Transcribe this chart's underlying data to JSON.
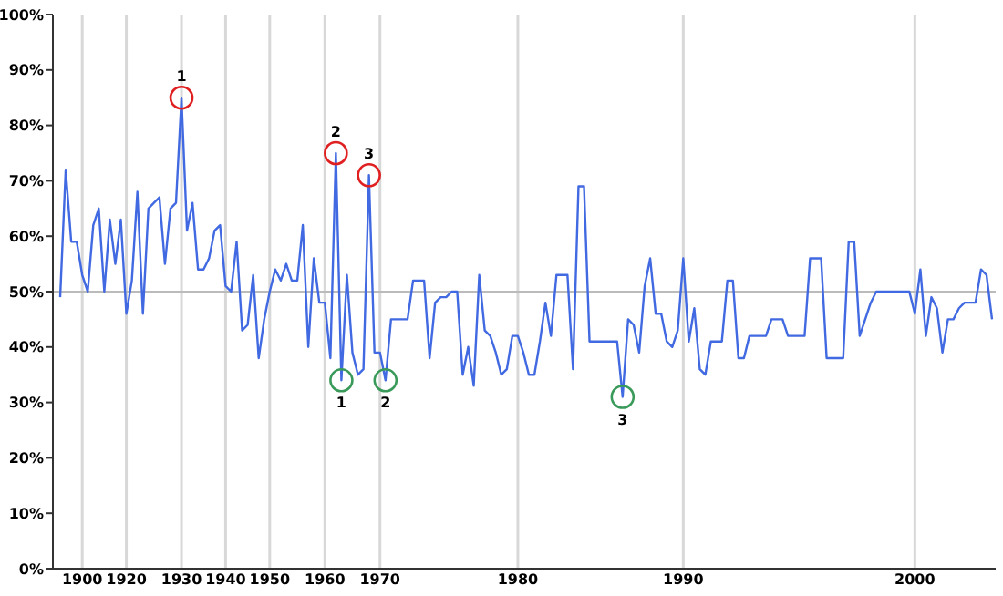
{
  "chart_data": {
    "type": "line",
    "categories": [
      null,
      null,
      null,
      null,
      "1900",
      null,
      null,
      null,
      null,
      null,
      null,
      null,
      "1920",
      null,
      null,
      null,
      null,
      null,
      null,
      null,
      null,
      null,
      "1930",
      null,
      null,
      null,
      null,
      null,
      null,
      null,
      "1940",
      null,
      null,
      null,
      null,
      null,
      null,
      null,
      "1950",
      null,
      null,
      null,
      null,
      null,
      null,
      null,
      null,
      null,
      "1960",
      null,
      null,
      null,
      null,
      null,
      null,
      null,
      null,
      null,
      "1970",
      null,
      null,
      null,
      null,
      null,
      null,
      null,
      null,
      null,
      null,
      null,
      null,
      null,
      null,
      null,
      null,
      null,
      null,
      null,
      null,
      null,
      null,
      null,
      null,
      "1980",
      null,
      null,
      null,
      null,
      null,
      null,
      null,
      null,
      null,
      null,
      null,
      null,
      null,
      null,
      null,
      null,
      null,
      null,
      null,
      null,
      null,
      null,
      null,
      null,
      null,
      null,
      null,
      null,
      null,
      "1990",
      null,
      null,
      null,
      null,
      null,
      null,
      null,
      null,
      null,
      null,
      null,
      null,
      null,
      null,
      null,
      null,
      null,
      null,
      null,
      null,
      null,
      null,
      null,
      null,
      null,
      null,
      null,
      null,
      null,
      null,
      null,
      null,
      null,
      null,
      null,
      null,
      null,
      null,
      null,
      null,
      null,
      "2000",
      null,
      null,
      null,
      null,
      null,
      null,
      null,
      null,
      null,
      null,
      null,
      null,
      null,
      null
    ],
    "series": [
      {
        "color": "#4169e1",
        "values": [
          49,
          72,
          59,
          59,
          53,
          50,
          62,
          65,
          50,
          63,
          55,
          63,
          46,
          52,
          68,
          46,
          65,
          66,
          67,
          55,
          65,
          66,
          85,
          61,
          66,
          54,
          54,
          56,
          61,
          62,
          51,
          50,
          59,
          43,
          44,
          53,
          38,
          45,
          50,
          54,
          52,
          55,
          52,
          52,
          62,
          40,
          56,
          48,
          48,
          38,
          75,
          34,
          53,
          39,
          35,
          36,
          71,
          39,
          39,
          34,
          45,
          45,
          45,
          45,
          52,
          52,
          52,
          38,
          48,
          49,
          49,
          50,
          50,
          35,
          40,
          33,
          53,
          43,
          42,
          39,
          35,
          36,
          42,
          42,
          39,
          35,
          35,
          41,
          48,
          42,
          53,
          53,
          53,
          36,
          69,
          69,
          41,
          41,
          41,
          41,
          41,
          41,
          31,
          45,
          44,
          39,
          51,
          56,
          46,
          46,
          41,
          40,
          43,
          56,
          41,
          47,
          36,
          35,
          41,
          41,
          41,
          52,
          52,
          38,
          38,
          42,
          42,
          42,
          42,
          45,
          45,
          45,
          42,
          42,
          42,
          42,
          56,
          56,
          56,
          38,
          38,
          38,
          38,
          59,
          59,
          42,
          45,
          48,
          50,
          50,
          50,
          50,
          50,
          50,
          50,
          46,
          54,
          42,
          49,
          47,
          39,
          45,
          45,
          47,
          48,
          48,
          48,
          54,
          53,
          45
        ]
      }
    ],
    "ylim": [
      0,
      100
    ],
    "yticks": [
      {
        "value": 0,
        "label": "0%"
      },
      {
        "value": 10,
        "label": "10%"
      },
      {
        "value": 20,
        "label": "20%"
      },
      {
        "value": 30,
        "label": "30%"
      },
      {
        "value": 40,
        "label": "40%"
      },
      {
        "value": 50,
        "label": "50%"
      },
      {
        "value": 60,
        "label": "60%"
      },
      {
        "value": 70,
        "label": "70%"
      },
      {
        "value": 80,
        "label": "80%"
      },
      {
        "value": 90,
        "label": "90%"
      },
      {
        "value": 100,
        "label": "100%"
      }
    ],
    "grid": "x",
    "marker": "none",
    "ref_lines": [
      {
        "axis": "y",
        "value": 50,
        "color": "#bbbbbb"
      }
    ],
    "annotations": [
      {
        "text": "1",
        "y": 85
      },
      {
        "text": "2",
        "y": 75
      },
      {
        "text": "3",
        "y": 71
      },
      {
        "text": "1",
        "y": 34
      },
      {
        "text": "2",
        "y": 34
      },
      {
        "text": "3",
        "y": 31
      }
    ]
  }
}
